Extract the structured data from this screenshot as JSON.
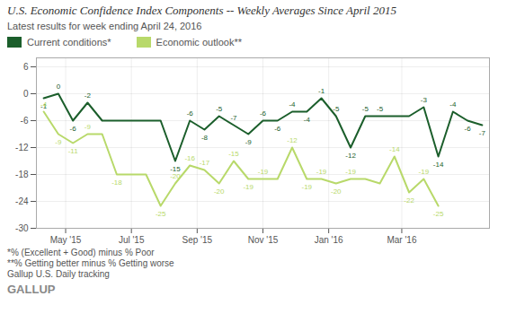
{
  "chart_data": {
    "type": "line",
    "title": "U.S. Economic Confidence Index Components -- Weekly Averages Since April 2015",
    "subtitle": "Latest results for week ending April 24, 2016",
    "annotations": [
      "*% (Excellent + Good) minus % Poor",
      "**% Getting better minus % Getting worse",
      "Gallup U.S. Daily tracking",
      "GALLUP"
    ],
    "series": [
      {
        "name": "Current conditions*",
        "color": "#1b5e2b",
        "x": [
          0,
          1,
          2,
          3,
          4,
          5,
          6,
          7,
          8,
          9,
          10,
          11,
          12,
          13,
          14,
          15,
          16,
          17,
          18,
          19,
          20,
          21,
          22,
          23,
          24,
          25,
          26,
          27,
          28,
          29,
          30
        ],
        "values": [
          -1,
          0,
          -6,
          -2,
          -6,
          -6,
          -6,
          -6,
          -6,
          -15,
          -6,
          -8,
          -5,
          -7,
          -9,
          -6,
          -6,
          -4,
          -4,
          -1,
          -5,
          -12,
          -5,
          -5,
          -5,
          -5,
          -3,
          -14,
          -4,
          -6,
          -7
        ],
        "value_labels": [
          "-1",
          "0",
          "-6",
          "-2",
          null,
          null,
          null,
          null,
          null,
          "-15",
          "-6",
          "-8",
          "-5",
          "-7",
          "-9",
          "-6",
          "-6",
          "-4",
          "-4",
          "-1",
          "-5",
          "-12",
          "-5",
          "-5",
          null,
          null,
          "-3",
          "-14",
          "-4",
          "-6",
          "-7"
        ]
      },
      {
        "name": "Economic outlook**",
        "color": "#b8d96a",
        "x": [
          0,
          1,
          2,
          3,
          4,
          5,
          6,
          7,
          8,
          9,
          10,
          11,
          12,
          13,
          14,
          15,
          16,
          17,
          18,
          19,
          20,
          21,
          22,
          23,
          24,
          25,
          26,
          27
        ],
        "values": [
          -4,
          -9,
          -11,
          -9,
          -9,
          -18,
          -18,
          -18,
          -25,
          -20,
          -16,
          -17,
          -20,
          -15,
          -19,
          -19,
          -19,
          -12,
          -19,
          -19,
          -20,
          -19,
          -19,
          -20,
          -14,
          -22,
          -19,
          -25
        ],
        "value_labels": [
          "-4",
          "-9",
          "-11",
          "-9",
          null,
          "-18",
          null,
          null,
          "-25",
          "-20",
          "-16",
          "-17",
          "-20",
          "-15",
          "-19",
          "-19",
          null,
          "-12",
          "-19",
          "-19",
          "-20",
          "-19",
          null,
          null,
          "-14",
          "-22",
          "-19",
          "-25"
        ]
      }
    ],
    "xlim": [
      -0.5,
      30.5
    ],
    "xticks": [
      {
        "value": 1.5,
        "label": "May '15"
      },
      {
        "value": 6,
        "label": "Jul '15"
      },
      {
        "value": 10.5,
        "label": "Sep '15"
      },
      {
        "value": 15,
        "label": "Nov '15"
      },
      {
        "value": 19.5,
        "label": "Jan '16"
      },
      {
        "value": 24.5,
        "label": "Mar '16"
      }
    ],
    "ylim": [
      -30,
      8
    ],
    "yticks": [
      6,
      0,
      -6,
      -12,
      -18,
      -24,
      -30
    ],
    "grid": true,
    "legend": "top",
    "data_labels": true
  }
}
